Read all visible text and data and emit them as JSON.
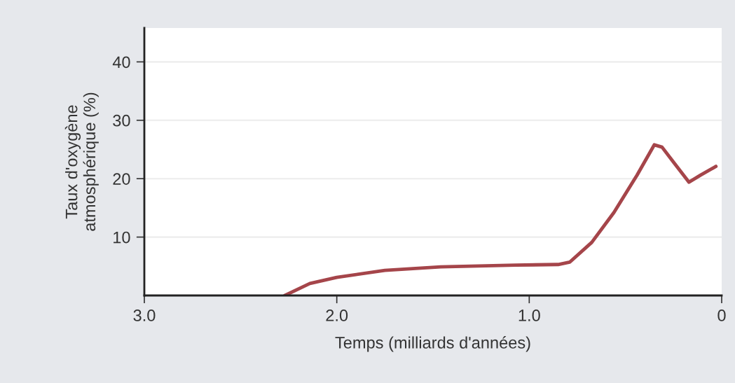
{
  "chart_data": {
    "type": "line",
    "xlabel": "Temps (milliards d'années)",
    "ylabel": "Taux d'oxygène\natmosphérique (%)",
    "x": [
      2.27,
      2.14,
      2.0,
      1.75,
      1.46,
      1.07,
      0.85,
      0.79,
      0.675,
      0.56,
      0.44,
      0.35,
      0.31,
      0.245,
      0.17,
      0.11,
      0.03
    ],
    "series": [
      {
        "color": "#a5454a",
        "values": [
          0,
          2.05,
          3.1,
          4.3,
          4.9,
          5.2,
          5.3,
          5.7,
          9.1,
          14.2,
          20.6,
          25.8,
          25.4,
          22.6,
          19.4,
          20.6,
          22.1
        ]
      }
    ],
    "xlim": [
      3.0,
      0
    ],
    "xticks": [
      {
        "value": 3.0,
        "label": "3.0"
      },
      {
        "value": 2.0,
        "label": "2.0"
      },
      {
        "value": 1.0,
        "label": "1.0"
      },
      0
    ],
    "ylim": [
      0,
      45.8
    ],
    "yticks": [
      10,
      20,
      30,
      40
    ],
    "grid": "y",
    "legend": false,
    "marker": "none",
    "line_style": "solid"
  }
}
